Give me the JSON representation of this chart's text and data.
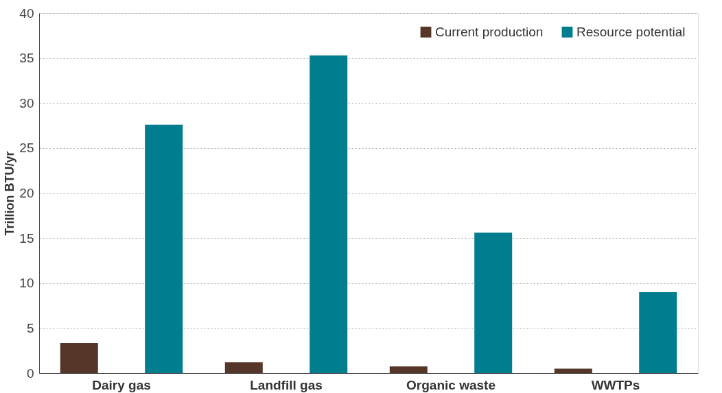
{
  "chart_data": {
    "type": "bar",
    "ylabel": "Trillion BTU/yr",
    "categories": [
      "Dairy gas",
      "Landfill gas",
      "Organic waste",
      "WWTPs"
    ],
    "series": [
      {
        "name": "Current production",
        "color": "#553629",
        "values": [
          3.35,
          1.2,
          0.75,
          0.5
        ]
      },
      {
        "name": "Resource potential",
        "color": "#007d8f",
        "values": [
          27.6,
          35.3,
          15.6,
          9.0
        ]
      }
    ],
    "ylim": [
      0,
      40
    ],
    "yticks": [
      0,
      5,
      10,
      15,
      20,
      25,
      30,
      35,
      40
    ],
    "grid": "y",
    "legend": "top right"
  }
}
